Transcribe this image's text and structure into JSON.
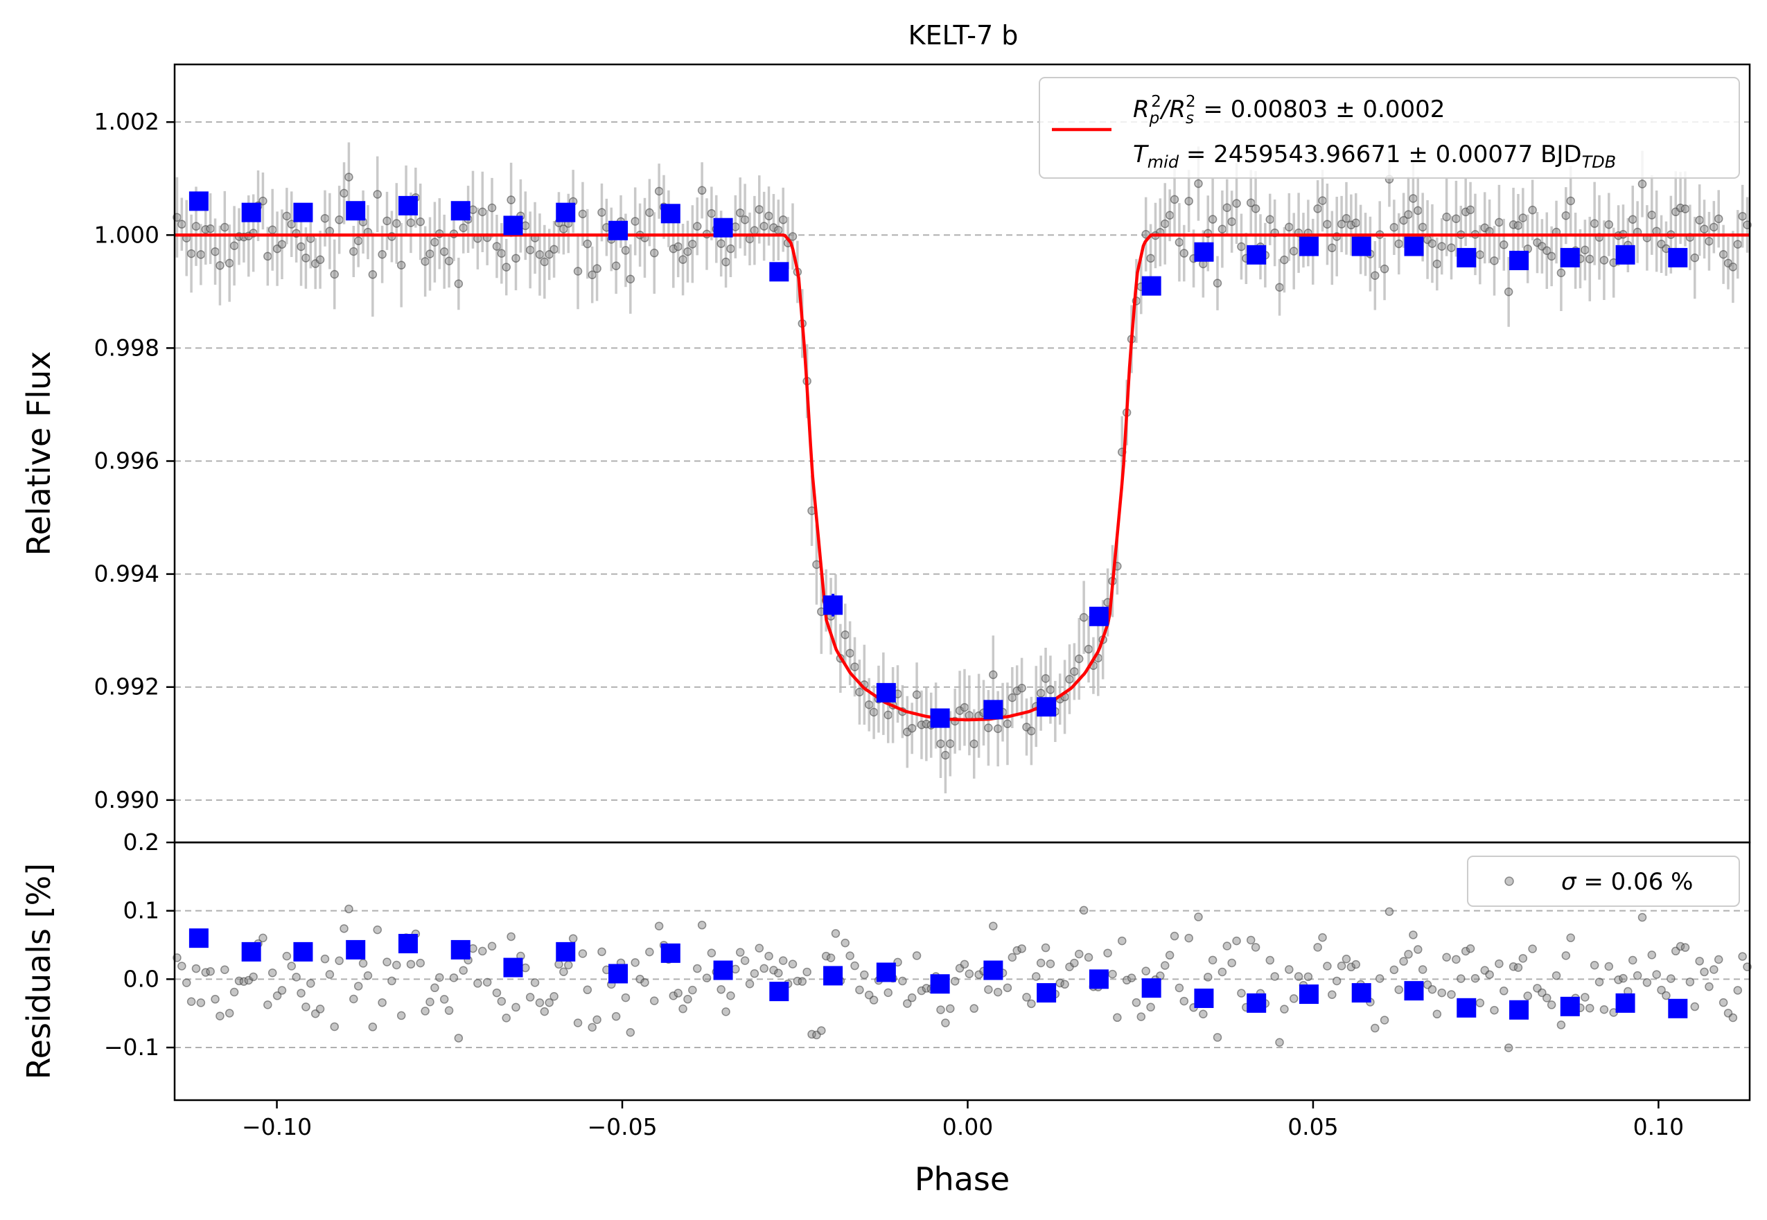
{
  "chart_data": [
    {
      "type": "scatter",
      "panel": "light-curve",
      "title": "KELT-7 b",
      "xlabel": "",
      "ylabel": "Relative Flux",
      "xlim": [
        -0.1148,
        0.1132
      ],
      "ylim": [
        0.98925,
        1.00302
      ],
      "yticks": [
        0.99,
        0.992,
        0.994,
        0.996,
        0.998,
        1.0,
        1.002
      ],
      "ytick_labels": [
        "0.990",
        "0.992",
        "0.994",
        "0.996",
        "0.998",
        "1.000",
        "1.002"
      ],
      "grid": "y-dashed",
      "legend_placement": "top-right",
      "legend": {
        "line1_parts": [
          "R",
          "p",
          "2",
          "/R",
          "s",
          "2",
          " = 0.00803 ± 0.0002"
        ],
        "line2_parts": [
          "T",
          "mid",
          " = 2459543.96671 ± 0.00077 BJD",
          "TDB"
        ]
      },
      "model": {
        "color": "#ff0000",
        "depth_at_center": 0.99142,
        "phase_first_contact": 0.0265,
        "phase_second_contact": 0.0205,
        "baseline": 1.0,
        "points": [
          [
            -0.1148,
            1.0
          ],
          [
            -0.0265,
            1.0
          ],
          [
            -0.0255,
            0.99985
          ],
          [
            -0.0245,
            0.9993
          ],
          [
            -0.0235,
            0.9978
          ],
          [
            -0.0225,
            0.9958
          ],
          [
            -0.0215,
            0.9945
          ],
          [
            -0.0205,
            0.9932
          ],
          [
            -0.019,
            0.99265
          ],
          [
            -0.017,
            0.99225
          ],
          [
            -0.015,
            0.99198
          ],
          [
            -0.012,
            0.99173
          ],
          [
            -0.009,
            0.99157
          ],
          [
            -0.006,
            0.99148
          ],
          [
            -0.003,
            0.99143
          ],
          [
            0.0,
            0.99142
          ],
          [
            0.003,
            0.99143
          ],
          [
            0.006,
            0.99148
          ],
          [
            0.009,
            0.99157
          ],
          [
            0.012,
            0.99173
          ],
          [
            0.015,
            0.99198
          ],
          [
            0.017,
            0.99225
          ],
          [
            0.019,
            0.99265
          ],
          [
            0.0205,
            0.9932
          ],
          [
            0.0215,
            0.9945
          ],
          [
            0.0225,
            0.9958
          ],
          [
            0.0235,
            0.9978
          ],
          [
            0.0245,
            0.9993
          ],
          [
            0.0255,
            0.99985
          ],
          [
            0.0265,
            1.0
          ],
          [
            0.1132,
            1.0
          ]
        ]
      },
      "binned": {
        "color": "#0000ff",
        "x": [
          -0.1113,
          -0.1037,
          -0.0962,
          -0.0886,
          -0.081,
          -0.0734,
          -0.0658,
          -0.0582,
          -0.0506,
          -0.043,
          -0.0354,
          -0.0273,
          -0.0195,
          -0.0118,
          -0.004,
          0.0037,
          0.0114,
          0.019,
          0.0266,
          0.0342,
          0.0418,
          0.0494,
          0.057,
          0.0646,
          0.0722,
          0.0798,
          0.0872,
          0.0952,
          0.1028
        ],
        "y": [
          1.0006,
          1.0004,
          1.0004,
          1.00043,
          1.00052,
          1.00043,
          1.00017,
          1.0004,
          1.00008,
          1.00038,
          1.00013,
          0.99935,
          0.99345,
          0.9919,
          0.99145,
          0.9916,
          0.99165,
          0.99325,
          0.9991,
          0.9997,
          0.99965,
          0.9998,
          0.9998,
          0.9998,
          0.9996,
          0.99955,
          0.9996,
          0.99965,
          0.9996
        ],
        "yerr": [
          8e-05,
          8e-05,
          8e-05,
          8e-05,
          8e-05,
          8e-05,
          8e-05,
          8e-05,
          8e-05,
          8e-05,
          8e-05,
          0.00012,
          0.0002,
          0.0001,
          0.0001,
          0.0001,
          0.0001,
          0.00015,
          0.00015,
          8e-05,
          8e-05,
          8e-05,
          8e-05,
          8e-05,
          8e-05,
          8e-05,
          8e-05,
          8e-05,
          8e-05
        ]
      },
      "raw": {
        "n": 330,
        "description_range": [
          -0.1148,
          0.1132
        ],
        "typical_yerr": 0.0006,
        "scatter": 0.0006,
        "color": "#808080"
      }
    },
    {
      "type": "scatter",
      "panel": "residuals",
      "xlabel": "Phase",
      "ylabel": "Residuals [%]",
      "xlim": [
        -0.1148,
        0.1132
      ],
      "ylim": [
        -0.177,
        0.2
      ],
      "xticks": [
        -0.1,
        -0.05,
        0.0,
        0.05,
        0.1
      ],
      "xtick_labels": [
        "−0.10",
        "−0.05",
        "0.00",
        "0.05",
        "0.10"
      ],
      "yticks": [
        -0.1,
        0.0,
        0.1,
        0.2
      ],
      "ytick_labels": [
        "−0.1",
        "0.0",
        "0.1",
        "0.2"
      ],
      "grid": "y-dashed",
      "legend_placement": "top-right",
      "legend": {
        "line1_parts": [
          "σ",
          " = 0.06 %"
        ]
      },
      "binned": {
        "color": "#0000ff",
        "x": [
          -0.1113,
          -0.1037,
          -0.0962,
          -0.0886,
          -0.081,
          -0.0734,
          -0.0658,
          -0.0582,
          -0.0506,
          -0.043,
          -0.0354,
          -0.0273,
          -0.0195,
          -0.0118,
          -0.004,
          0.0037,
          0.0114,
          0.019,
          0.0266,
          0.0342,
          0.0418,
          0.0494,
          0.057,
          0.0646,
          0.0722,
          0.0798,
          0.0872,
          0.0952,
          0.1028
        ],
        "y": [
          0.06,
          0.04,
          0.04,
          0.043,
          0.052,
          0.043,
          0.017,
          0.04,
          0.008,
          0.038,
          0.013,
          -0.018,
          0.005,
          0.01,
          -0.007,
          0.013,
          -0.02,
          0.0,
          -0.013,
          -0.028,
          -0.035,
          -0.022,
          -0.02,
          -0.017,
          -0.042,
          -0.045,
          -0.04,
          -0.035,
          -0.043
        ]
      },
      "raw": {
        "n": 330,
        "scatter_percent": 0.06,
        "color": "#808080"
      }
    }
  ]
}
